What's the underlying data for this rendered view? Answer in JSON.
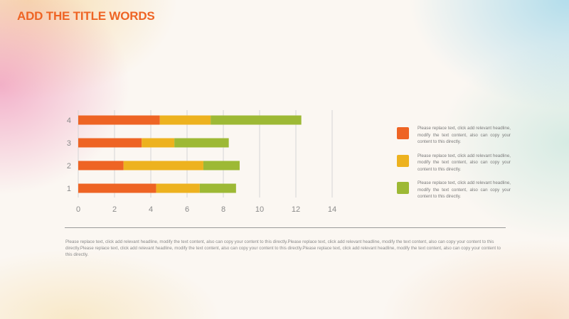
{
  "slide": {
    "title": "ADD THE TITLE WORDS",
    "body_text": "Please replace text, click add relevant headline, modify the text content, also can copy your content to this directly.Please replace text, click add relevant headline, modify the text content, also can copy your content to this directly.Please replace text, click add relevant headline, modify the text content, also can copy your content to this directly.Please replace text, click add relevant headline, modify the text content, also can copy your content to this directly."
  },
  "legend": {
    "items": [
      {
        "text": "Please replace text, click add relevant headline, modify the text content, also can copy your content to this directly.",
        "color": "#EE6424"
      },
      {
        "text": "Please replace text, click add relevant headline, modify the text content, also can copy your content to this directly.",
        "color": "#EDB21F"
      },
      {
        "text": "Please replace text, click add relevant headline, modify the text content, also can copy your content to this directly.",
        "color": "#9DB935"
      }
    ]
  },
  "colors": {
    "title": "#EE6424",
    "series": [
      "#EE6424",
      "#EDB21F",
      "#9DB935"
    ],
    "axis_text": "#8a8a8a",
    "gridline": "#d6d6d6"
  },
  "chart_data": {
    "type": "bar",
    "orientation": "horizontal",
    "stacked": true,
    "categories": [
      "1",
      "2",
      "3",
      "4"
    ],
    "series": [
      {
        "values": [
          4.3,
          2.5,
          3.5,
          4.5
        ]
      },
      {
        "values": [
          2.4,
          4.4,
          1.8,
          2.8
        ]
      },
      {
        "values": [
          2.0,
          2.0,
          3.0,
          5.0
        ]
      }
    ],
    "xlim": [
      0,
      14
    ],
    "x_ticks": [
      0,
      2,
      4,
      6,
      8,
      10,
      12,
      14
    ],
    "grid": true,
    "legend_position": "right"
  }
}
